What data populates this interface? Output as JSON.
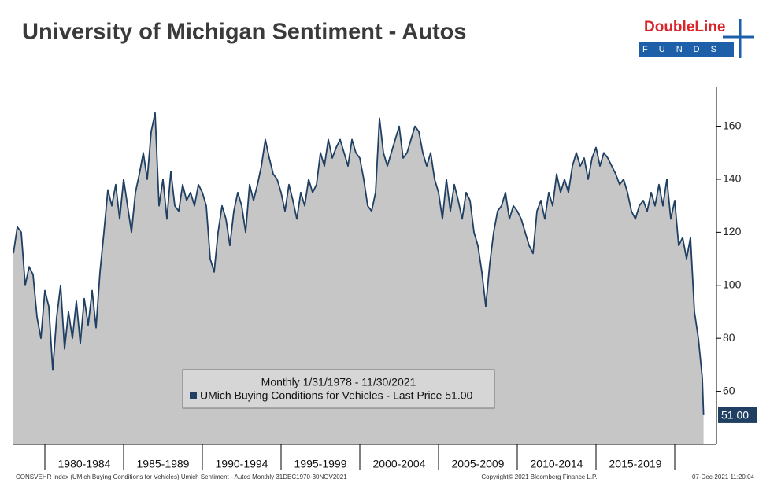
{
  "chart_data": {
    "type": "area",
    "title": "University of Michigan Sentiment - Autos",
    "brand": "DoubleLine",
    "brand_sub": "FUNDS",
    "legend_title": "Monthly 1/31/1978 - 11/30/2021",
    "last_label": {
      "value": 51,
      "label": "51.00"
    },
    "footer_left": "CONSVEHR Index (UMich Buying Conditions for Vehicles) Umich Sentiment - Autos  Monthly 31DEC1970-30NOV2021",
    "footer_center": "Copyright© 2021 Bloomberg Finance L.P.",
    "footer_right": "07-Dec-2021 11:20:04",
    "x": [
      1978.0,
      1978.25,
      1978.5,
      1978.75,
      1979.0,
      1979.25,
      1979.5,
      1979.75,
      1980.0,
      1980.25,
      1980.5,
      1980.75,
      1981.0,
      1981.25,
      1981.5,
      1981.75,
      1982.0,
      1982.25,
      1982.5,
      1982.75,
      1983.0,
      1983.25,
      1983.5,
      1983.75,
      1984.0,
      1984.25,
      1984.5,
      1984.75,
      1985.0,
      1985.25,
      1985.5,
      1985.75,
      1986.0,
      1986.25,
      1986.5,
      1986.75,
      1987.0,
      1987.25,
      1987.5,
      1987.75,
      1988.0,
      1988.25,
      1988.5,
      1988.75,
      1989.0,
      1989.25,
      1989.5,
      1989.75,
      1990.0,
      1990.25,
      1990.5,
      1990.75,
      1991.0,
      1991.25,
      1991.5,
      1991.75,
      1992.0,
      1992.25,
      1992.5,
      1992.75,
      1993.0,
      1993.25,
      1993.5,
      1993.75,
      1994.0,
      1994.25,
      1994.5,
      1994.75,
      1995.0,
      1995.25,
      1995.5,
      1995.75,
      1996.0,
      1996.25,
      1996.5,
      1996.75,
      1997.0,
      1997.25,
      1997.5,
      1997.75,
      1998.0,
      1998.25,
      1998.5,
      1998.75,
      1999.0,
      1999.25,
      1999.5,
      1999.75,
      2000.0,
      2000.25,
      2000.5,
      2000.75,
      2001.0,
      2001.25,
      2001.5,
      2001.75,
      2002.0,
      2002.25,
      2002.5,
      2002.75,
      2003.0,
      2003.25,
      2003.5,
      2003.75,
      2004.0,
      2004.25,
      2004.5,
      2004.75,
      2005.0,
      2005.25,
      2005.5,
      2005.75,
      2006.0,
      2006.25,
      2006.5,
      2006.75,
      2007.0,
      2007.25,
      2007.5,
      2007.75,
      2008.0,
      2008.25,
      2008.5,
      2008.75,
      2009.0,
      2009.25,
      2009.5,
      2009.75,
      2010.0,
      2010.25,
      2010.5,
      2010.75,
      2011.0,
      2011.25,
      2011.5,
      2011.75,
      2012.0,
      2012.25,
      2012.5,
      2012.75,
      2013.0,
      2013.25,
      2013.5,
      2013.75,
      2014.0,
      2014.25,
      2014.5,
      2014.75,
      2015.0,
      2015.25,
      2015.5,
      2015.75,
      2016.0,
      2016.25,
      2016.5,
      2016.75,
      2017.0,
      2017.25,
      2017.5,
      2017.75,
      2018.0,
      2018.25,
      2018.5,
      2018.75,
      2019.0,
      2019.25,
      2019.5,
      2019.75,
      2020.0,
      2020.25,
      2020.5,
      2020.75,
      2021.0,
      2021.25,
      2021.5,
      2021.75,
      2021.83
    ],
    "series": [
      {
        "name": "UMich Buying Conditions for Vehicles - Last Price 51.00",
        "color": "#1f3f63",
        "fill": "#c6c6c6",
        "values": [
          112,
          122,
          120,
          100,
          107,
          104,
          88,
          80,
          98,
          92,
          68,
          88,
          100,
          76,
          90,
          80,
          94,
          78,
          95,
          85,
          98,
          84,
          105,
          120,
          136,
          130,
          138,
          125,
          140,
          130,
          120,
          135,
          142,
          150,
          140,
          158,
          165,
          130,
          140,
          125,
          143,
          130,
          128,
          138,
          132,
          135,
          130,
          138,
          135,
          130,
          110,
          105,
          120,
          130,
          125,
          115,
          128,
          135,
          130,
          120,
          138,
          132,
          138,
          145,
          155,
          148,
          142,
          140,
          135,
          128,
          138,
          132,
          125,
          135,
          130,
          140,
          135,
          138,
          150,
          145,
          155,
          148,
          152,
          155,
          150,
          145,
          155,
          150,
          148,
          140,
          130,
          128,
          135,
          163,
          150,
          145,
          150,
          155,
          160,
          148,
          150,
          155,
          160,
          158,
          150,
          145,
          150,
          140,
          135,
          125,
          140,
          128,
          138,
          132,
          125,
          135,
          132,
          120,
          115,
          105,
          92,
          108,
          120,
          128,
          130,
          135,
          125,
          130,
          128,
          125,
          120,
          115,
          112,
          128,
          132,
          125,
          135,
          130,
          142,
          135,
          140,
          135,
          145,
          150,
          145,
          148,
          140,
          148,
          152,
          145,
          150,
          148,
          145,
          142,
          138,
          140,
          135,
          128,
          125,
          130,
          132,
          128,
          135,
          130,
          138,
          130,
          140,
          125,
          132,
          115,
          118,
          110,
          118,
          90,
          80,
          65,
          51
        ]
      }
    ],
    "xlim": [
      1977.95,
      2022.65
    ],
    "ylim": [
      40,
      175
    ],
    "yticks": [
      60,
      80,
      100,
      120,
      140,
      160
    ],
    "xticks": [
      {
        "value": 1982.5,
        "label": "1980-1984"
      },
      {
        "value": 1987.5,
        "label": "1985-1989"
      },
      {
        "value": 1992.5,
        "label": "1990-1994"
      },
      {
        "value": 1997.5,
        "label": "1995-1999"
      },
      {
        "value": 2002.5,
        "label": "2000-2004"
      },
      {
        "value": 2007.5,
        "label": "2005-2009"
      },
      {
        "value": 2012.5,
        "label": "2010-2014"
      },
      {
        "value": 2017.5,
        "label": "2015-2019"
      }
    ]
  }
}
